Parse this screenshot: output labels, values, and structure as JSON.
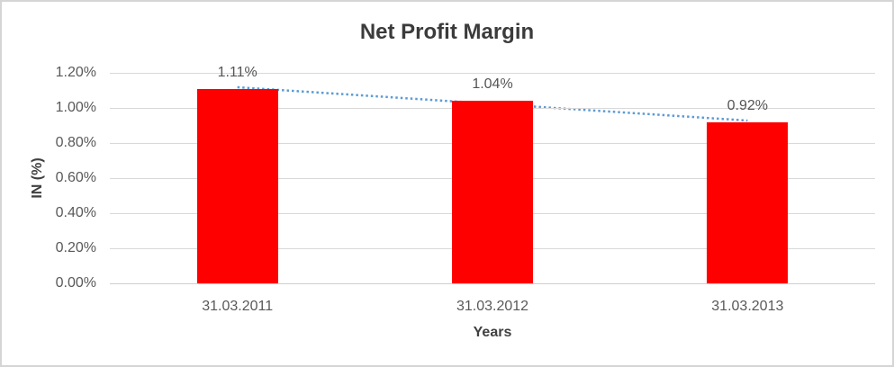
{
  "chart_data": {
    "type": "bar",
    "title": "Net Profit Margin",
    "xlabel": "Years",
    "ylabel": "IN (%)",
    "categories": [
      "31.03.2011",
      "31.03.2012",
      "31.03.2013"
    ],
    "values": [
      1.11,
      1.04,
      0.92
    ],
    "data_labels": [
      "1.11%",
      "1.04%",
      "0.92%"
    ],
    "ylim": [
      0,
      1.2
    ],
    "ytick_labels": [
      "1.20%",
      "1.00%",
      "0.80%",
      "0.60%",
      "0.40%",
      "0.20%",
      "0.00%"
    ],
    "grid": true,
    "legend": "none",
    "trendline": {
      "style": "dotted",
      "start_value": 1.118,
      "end_value": 0.928
    },
    "colors": {
      "bar": "#ff0000",
      "trendline": "#5b9bd5",
      "gridline": "#d9d9d9",
      "tick_text": "#595959",
      "title_text": "#3b3b3b"
    }
  }
}
